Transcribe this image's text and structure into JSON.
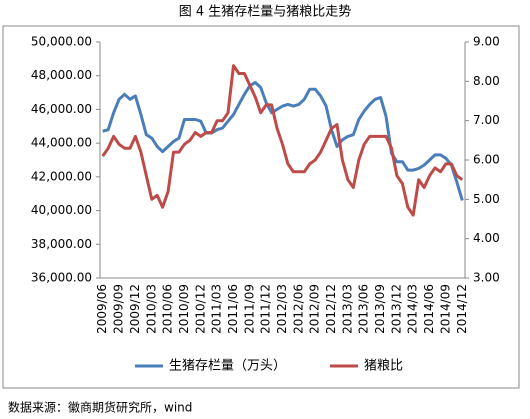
{
  "chart_data": {
    "type": "line",
    "title": "图 4  生猪存栏量与猪粮比走势",
    "source": "数据来源：徽商期货研究所，wind",
    "categories": [
      "2009/06",
      null,
      null,
      "2009/09",
      null,
      null,
      "2009/12",
      null,
      null,
      "2010/03",
      null,
      null,
      "2010/06",
      null,
      null,
      "2010/09",
      null,
      null,
      "2010/12",
      null,
      null,
      "2011/03",
      null,
      null,
      "2011/06",
      null,
      null,
      "2011/09",
      null,
      null,
      "2011/12",
      null,
      null,
      "2012/03",
      null,
      null,
      "2012/06",
      null,
      null,
      "2012/09",
      null,
      null,
      "2012/12",
      null,
      null,
      "2013/03",
      null,
      null,
      "2013/06",
      null,
      null,
      "2013/09",
      null,
      null,
      "2013/12",
      null,
      null,
      "2014/03",
      null,
      null,
      "2014/06",
      null,
      null,
      "2014/09",
      null,
      null,
      "2014/12"
    ],
    "series": [
      {
        "name": "生猪存栏量（万头）",
        "color": "#4a7ebb",
        "values": [
          44700,
          44800,
          45800,
          46600,
          46900,
          46600,
          46800,
          45700,
          44500,
          44300,
          43800,
          43500,
          43800,
          44100,
          44300,
          45400,
          45400,
          45400,
          45300,
          44600,
          44600,
          44800,
          44900,
          45300,
          45700,
          46300,
          46900,
          47400,
          47600,
          47300,
          46400,
          45800,
          46000,
          46200,
          46300,
          46200,
          46300,
          46600,
          47200,
          47200,
          46800,
          46200,
          44800,
          43800,
          44200,
          44400,
          44500,
          45400,
          45900,
          46300,
          46600,
          46700,
          45600,
          43400,
          42900,
          42900,
          42400,
          42400,
          42500,
          42700,
          43000,
          43300,
          43300,
          43100,
          42700,
          41700,
          40600
        ]
      },
      {
        "name": "猪粮比",
        "color": "#be4b48",
        "axis": "y2",
        "values": [
          6.1,
          6.3,
          6.6,
          6.4,
          6.3,
          6.3,
          6.6,
          6.2,
          5.6,
          5.0,
          5.1,
          4.8,
          5.2,
          6.2,
          6.2,
          6.4,
          6.5,
          6.7,
          6.6,
          6.7,
          6.7,
          7.0,
          7.0,
          7.2,
          8.4,
          8.2,
          8.2,
          7.9,
          7.6,
          7.2,
          7.4,
          7.4,
          6.8,
          6.4,
          5.9,
          5.7,
          5.7,
          5.7,
          5.9,
          6.0,
          6.2,
          6.5,
          6.8,
          6.9,
          6.0,
          5.5,
          5.3,
          6.0,
          6.4,
          6.6,
          6.6,
          6.6,
          6.6,
          6.3,
          5.6,
          5.4,
          4.8,
          4.6,
          5.5,
          5.3,
          5.6,
          5.8,
          5.7,
          5.9,
          5.9,
          5.6,
          5.5
        ]
      }
    ],
    "ylim": [
      36000,
      50000
    ],
    "yticks": [
      {
        "value": 36000,
        "label": "36,000.00"
      },
      {
        "value": 38000,
        "label": "38,000.00"
      },
      {
        "value": 40000,
        "label": "40,000.00"
      },
      {
        "value": 42000,
        "label": "42,000.00"
      },
      {
        "value": 44000,
        "label": "44,000.00"
      },
      {
        "value": 46000,
        "label": "46,000.00"
      },
      {
        "value": 48000,
        "label": "48,000.00"
      },
      {
        "value": 50000,
        "label": "50,000.00"
      }
    ],
    "y2lim": [
      3,
      9
    ],
    "y2ticks": [
      {
        "value": 3,
        "label": "3.00"
      },
      {
        "value": 4,
        "label": "4.00"
      },
      {
        "value": 5,
        "label": "5.00"
      },
      {
        "value": 6,
        "label": "6.00"
      },
      {
        "value": 7,
        "label": "7.00"
      },
      {
        "value": 8,
        "label": "8.00"
      },
      {
        "value": 9,
        "label": "9.00"
      }
    ],
    "legend": "bottom"
  }
}
